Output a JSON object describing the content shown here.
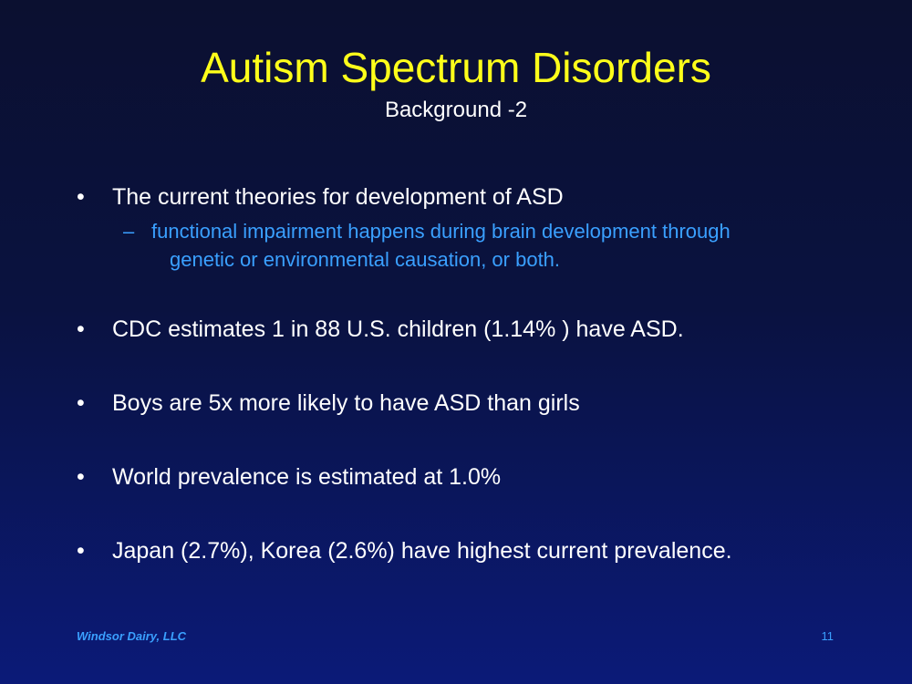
{
  "slide": {
    "title": "Autism Spectrum Disorders",
    "subtitle": "Background -2",
    "bullet_symbol": "•",
    "sub_bullet_symbol": "–",
    "bullets": [
      "The current theories for development of ASD",
      "CDC estimates 1 in 88 U.S. children (1.14% ) have ASD.",
      "Boys are 5x more likely to have ASD than girls",
      "World prevalence is estimated at 1.0%",
      "Japan (2.7%), Korea (2.6%) have highest current prevalence."
    ],
    "sub_bullet": {
      "line1": "functional impairment happens during brain development through",
      "line2": "genetic or environmental causation, or both."
    },
    "footer_left": "Windsor Dairy, LLC",
    "page_number": "11"
  },
  "colors": {
    "title": "#ffff1a",
    "body_text": "#ffffff",
    "accent_blue": "#3aa0ff",
    "background_top": "#0b1030",
    "background_bottom": "#0b1a78"
  }
}
